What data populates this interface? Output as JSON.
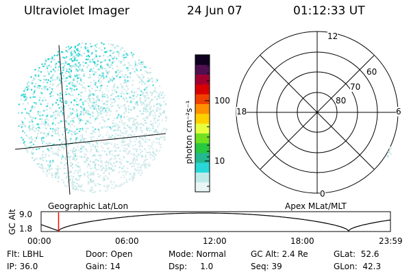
{
  "header": {
    "instrument": "Ultraviolet Imager",
    "date": "24 Jun 07",
    "time": "01:12:33 UT"
  },
  "colorbar": {
    "unit_label": "photon cm⁻²s⁻¹",
    "ticks": [
      "100",
      "10"
    ],
    "colors": [
      "#eaf6f6",
      "#bfeaea",
      "#28d8d8",
      "#24b890",
      "#28c840",
      "#70e020",
      "#e8ff40",
      "#ffd000",
      "#ff9000",
      "#f04000",
      "#d80000",
      "#a00030",
      "#501050",
      "#100020"
    ]
  },
  "left_panel": {
    "caption": "Geographic Lat/Lon",
    "dot_colors": [
      "#d8ecec",
      "#c8e6e6",
      "#a8e4e4",
      "#40dcdc",
      "#28d0d0"
    ]
  },
  "right_panel": {
    "caption": "Apex MLat/MLT",
    "mlt_labels": {
      "top": "12",
      "bottom": "0",
      "left": "18",
      "right": "6"
    },
    "lat_labels": [
      "60",
      "70",
      "80"
    ]
  },
  "timeline": {
    "ylabel": "GC Alt",
    "y_ticks": [
      "9.0",
      "1.8"
    ],
    "x_ticks": [
      "00:00",
      "06:00",
      "12:00",
      "18:00",
      "23:59"
    ],
    "marker_color": "#ff0000",
    "current_time_fraction": 0.05
  },
  "info": {
    "row1": [
      "Flt: LBHL",
      "Door: Open",
      "Mode: Normal",
      "GC Alt: 2.4 Re",
      "GLat:  52.6"
    ],
    "row2": [
      "IP: 36.0",
      "Gain: 14",
      "Dsp:     1.0",
      "Seq: 39",
      "GLon:  42.3"
    ]
  }
}
